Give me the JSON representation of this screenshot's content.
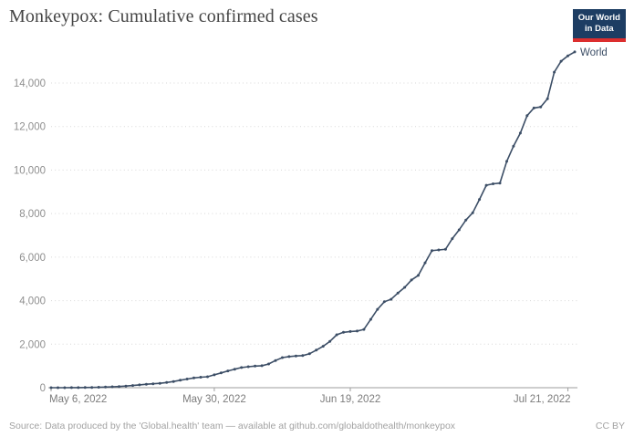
{
  "header": {
    "title": "Monkeypox: Cumulative confirmed cases"
  },
  "logo": {
    "line1": "Our World",
    "line2": "in Data"
  },
  "footer": {
    "source": "Source: Data produced by the 'Global.health' team — available at github.com/globaldothealth/monkeypox",
    "license": "CC BY"
  },
  "colors": {
    "line": "#3c4e66",
    "logo_bg": "#1d3d63",
    "logo_bar": "#dc2e2e",
    "grid": "#d8d8d8",
    "axis": "#9e9e9e",
    "y_label": "#8f8f8f",
    "x_label": "#7c7c7c",
    "title": "#454545"
  },
  "chart_data": {
    "type": "line",
    "title": "Monkeypox: Cumulative confirmed cases",
    "series_name": "World",
    "legend": "label-at-line-end",
    "grid": "horizontal-dotted",
    "ylim": [
      0,
      15500
    ],
    "y_ticks": [
      0,
      2000,
      4000,
      6000,
      8000,
      10000,
      12000,
      14000
    ],
    "x_ticks": [
      {
        "label": "May 6, 2022",
        "index": 0,
        "align": "start"
      },
      {
        "label": "May 30, 2022",
        "index": 24,
        "align": "middle"
      },
      {
        "label": "Jun 19, 2022",
        "index": 44,
        "align": "middle"
      },
      {
        "label": "Jul 21, 2022",
        "index": 76,
        "align": "end"
      }
    ],
    "dates": [
      "May 6",
      "May 7",
      "May 8",
      "May 9",
      "May 10",
      "May 11",
      "May 12",
      "May 13",
      "May 14",
      "May 15",
      "May 16",
      "May 17",
      "May 18",
      "May 19",
      "May 20",
      "May 21",
      "May 22",
      "May 23",
      "May 24",
      "May 25",
      "May 26",
      "May 27",
      "May 28",
      "May 29",
      "May 30",
      "May 31",
      "Jun 1",
      "Jun 2",
      "Jun 3",
      "Jun 4",
      "Jun 5",
      "Jun 6",
      "Jun 7",
      "Jun 8",
      "Jun 9",
      "Jun 10",
      "Jun 11",
      "Jun 12",
      "Jun 13",
      "Jun 14",
      "Jun 15",
      "Jun 16",
      "Jun 17",
      "Jun 18",
      "Jun 19",
      "Jun 20",
      "Jun 21",
      "Jun 22",
      "Jun 23",
      "Jun 24",
      "Jun 25",
      "Jun 26",
      "Jun 27",
      "Jun 28",
      "Jun 29",
      "Jun 30",
      "Jul 1",
      "Jul 2",
      "Jul 3",
      "Jul 4",
      "Jul 5",
      "Jul 6",
      "Jul 7",
      "Jul 8",
      "Jul 9",
      "Jul 10",
      "Jul 11",
      "Jul 12",
      "Jul 13",
      "Jul 14",
      "Jul 15",
      "Jul 16",
      "Jul 17",
      "Jul 18",
      "Jul 19",
      "Jul 20",
      "Jul 21",
      "Jul 22"
    ],
    "values": [
      1,
      2,
      2,
      3,
      5,
      8,
      13,
      21,
      31,
      42,
      55,
      75,
      100,
      130,
      158,
      180,
      200,
      237,
      285,
      342,
      400,
      450,
      480,
      505,
      590,
      680,
      770,
      850,
      925,
      965,
      995,
      1010,
      1090,
      1250,
      1385,
      1430,
      1460,
      1475,
      1560,
      1725,
      1905,
      2125,
      2430,
      2545,
      2580,
      2605,
      2680,
      3140,
      3600,
      3950,
      4060,
      4350,
      4610,
      4950,
      5160,
      5740,
      6300,
      6330,
      6360,
      6850,
      7250,
      7700,
      8040,
      8650,
      9300,
      9370,
      9400,
      10400,
      11100,
      11700,
      12500,
      12850,
      12900,
      13280,
      14500,
      15000,
      15250,
      15430
    ]
  }
}
